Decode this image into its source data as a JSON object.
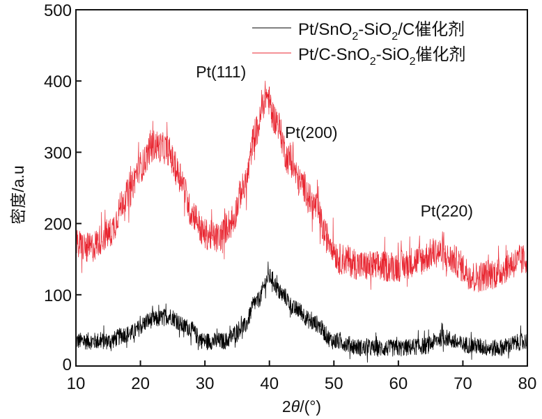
{
  "chart_data": {
    "type": "line",
    "title": "",
    "xlabel": "2θ/(°)",
    "xlabel_parts": {
      "prefix": "2",
      "italic": "θ",
      "suffix": "/(°)"
    },
    "ylabel": "密度/a.u",
    "xlim": [
      10,
      80
    ],
    "ylim": [
      0,
      500
    ],
    "xticks": [
      10,
      20,
      30,
      40,
      50,
      60,
      70,
      80
    ],
    "yticks": [
      0,
      100,
      200,
      300,
      400,
      500
    ],
    "grid": false,
    "legend_position": "top-right",
    "series": [
      {
        "name": "Pt/SnO2-SiO2/C催化剂",
        "legend_parts": [
          "Pt/SnO",
          "2",
          "-SiO",
          "2",
          "/C催化剂"
        ],
        "color": "#000000",
        "noise_amplitude": 12,
        "x": [
          10,
          15,
          18,
          22,
          24.5,
          27,
          30,
          33,
          36,
          38,
          40,
          42,
          44,
          47,
          50,
          55,
          60,
          64,
          67,
          70,
          75,
          80
        ],
        "y": [
          35,
          35,
          45,
          65,
          70,
          55,
          35,
          35,
          55,
          90,
          125,
          100,
          80,
          60,
          35,
          25,
          25,
          28,
          40,
          30,
          25,
          35
        ]
      },
      {
        "name": "Pt/C-SnO2-SiO2催化剂",
        "legend_parts": [
          "Pt/C-SnO",
          "2",
          "-SiO",
          "2",
          "催化剂"
        ],
        "color": "#e8242f",
        "noise_amplitude": 22,
        "x": [
          10,
          12,
          15,
          18,
          20,
          22,
          24,
          26,
          28,
          30,
          32,
          34,
          36,
          38,
          39.5,
          41,
          43,
          45,
          47,
          49,
          51,
          55,
          60,
          63,
          66,
          68,
          72,
          75,
          78,
          80
        ],
        "y": [
          170,
          165,
          185,
          240,
          280,
          310,
          305,
          270,
          215,
          185,
          180,
          200,
          250,
          330,
          380,
          345,
          290,
          255,
          225,
          180,
          150,
          140,
          140,
          148,
          160,
          150,
          125,
          130,
          145,
          150
        ]
      }
    ],
    "annotations": [
      {
        "text": "Pt(111)",
        "x": 32.5,
        "y": 405
      },
      {
        "text": "Pt(200)",
        "x": 46.5,
        "y": 320
      },
      {
        "text": "Pt(220)",
        "x": 67.5,
        "y": 210
      }
    ]
  }
}
